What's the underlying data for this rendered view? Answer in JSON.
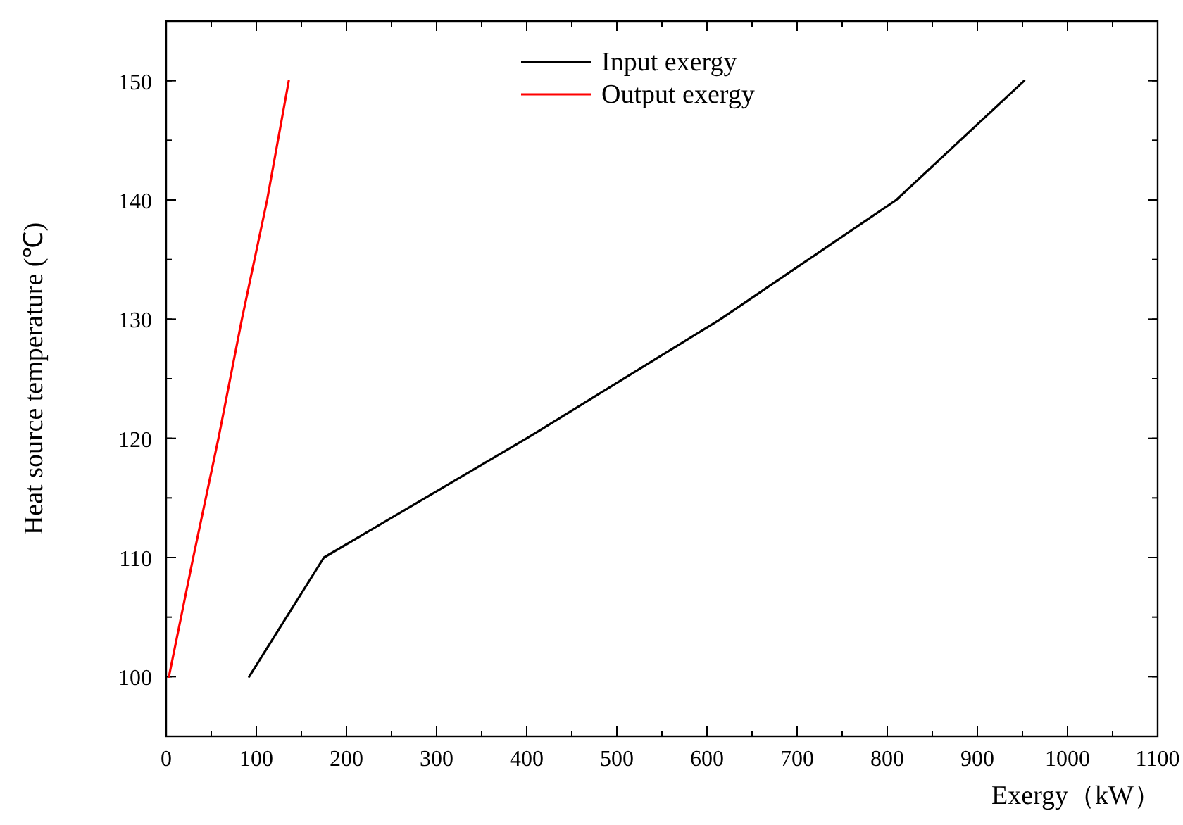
{
  "chart_data": {
    "type": "line",
    "xlabel": "Exergy（kW）",
    "ylabel": "Heat source temperature (℃)",
    "series": [
      {
        "name": "Input exergy",
        "color": "#000000",
        "x": [
          92,
          175,
          400,
          615,
          810,
          952
        ],
        "values": [
          100,
          110,
          120,
          130,
          140,
          150
        ]
      },
      {
        "name": "Output exergy",
        "color": "#ff0000",
        "x": [
          3,
          30,
          58,
          84,
          112,
          136
        ],
        "values": [
          100,
          110,
          120,
          130,
          140,
          150
        ]
      }
    ],
    "xlim": [
      0,
      1100
    ],
    "ylim": [
      95,
      155
    ],
    "xticks": [
      0,
      100,
      200,
      300,
      400,
      500,
      600,
      700,
      800,
      900,
      1000,
      1100
    ],
    "yticks": [
      100,
      110,
      120,
      130,
      140,
      150
    ],
    "legend": "top",
    "grid": false,
    "marker": "none",
    "line_style": "solid"
  }
}
